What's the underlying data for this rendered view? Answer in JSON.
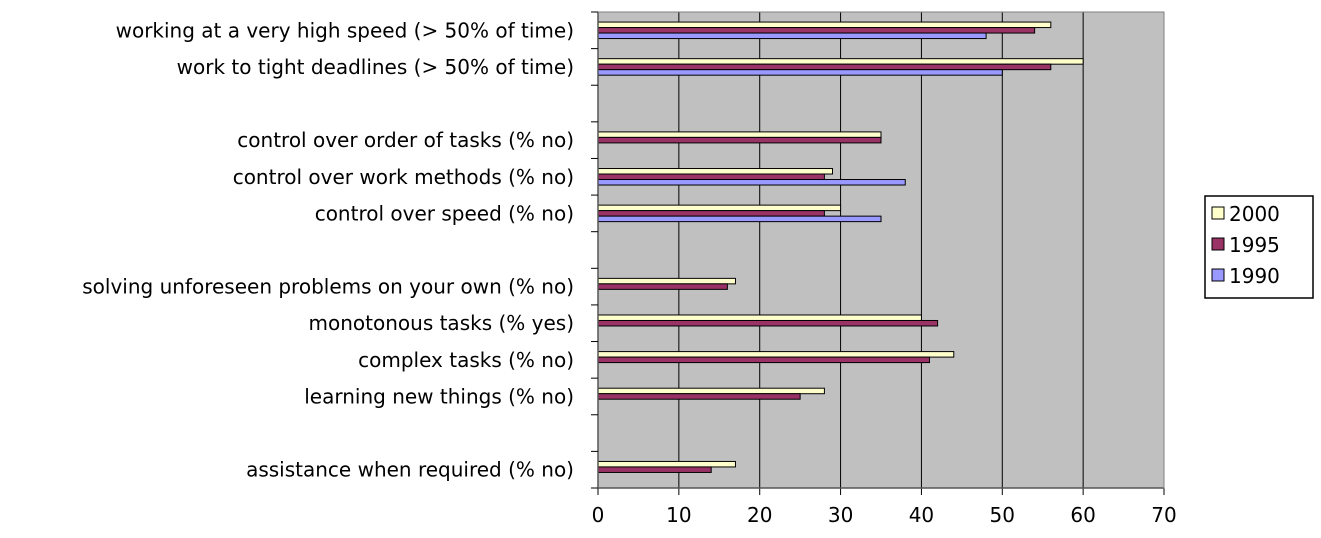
{
  "chart_data": {
    "type": "bar",
    "orientation": "horizontal",
    "title": "",
    "xlabel": "",
    "ylabel": "",
    "xlim": [
      0,
      70
    ],
    "x_ticks": [
      "0",
      "10",
      "20",
      "30",
      "40",
      "50",
      "60",
      "70"
    ],
    "grid": "vertical",
    "legend_position": "right",
    "categories": [
      "working at a very high speed (> 50% of time)",
      "work to tight deadlines (> 50% of time)",
      "",
      "control over order of tasks (% no)",
      "control over work methods (% no)",
      "control over speed (% no)",
      "",
      "solving unforeseen problems on your own (% no)",
      "monotonous tasks (% yes)",
      "complex tasks (% no)",
      "learning new things (% no)",
      "",
      "assistance when required (% no)"
    ],
    "series": [
      {
        "name": "2000",
        "color": "#ffffcc",
        "values": [
          56,
          60,
          null,
          35,
          29,
          30,
          null,
          17,
          40,
          44,
          28,
          null,
          17
        ]
      },
      {
        "name": "1995",
        "color": "#993366",
        "values": [
          54,
          56,
          null,
          35,
          28,
          28,
          null,
          16,
          42,
          41,
          25,
          null,
          14
        ]
      },
      {
        "name": "1990",
        "color": "#9999ff",
        "values": [
          48,
          50,
          null,
          null,
          38,
          35,
          null,
          null,
          null,
          null,
          null,
          null,
          null
        ]
      }
    ]
  }
}
